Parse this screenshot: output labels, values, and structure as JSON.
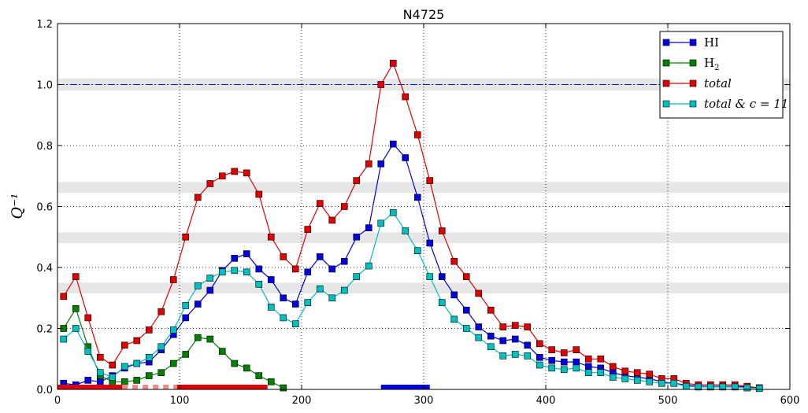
{
  "chart_data": {
    "type": "line",
    "title": "N4725",
    "xlabel": "",
    "ylabel": "Q⁻¹",
    "xlim": [
      0,
      600
    ],
    "ylim": [
      0,
      1.2
    ],
    "x_ticks": [
      "0",
      "100",
      "200",
      "300",
      "400",
      "500",
      "600"
    ],
    "y_ticks": [
      "0.0",
      "0.2",
      "0.4",
      "0.6",
      "0.8",
      "1.0",
      "1.2"
    ],
    "grid": true,
    "legend_position": "top-right",
    "reference_line": {
      "y": 1.0,
      "color": "#0000ff",
      "style": "dash-dot"
    },
    "shaded_bands": [
      [
        0.315,
        0.35
      ],
      [
        0.48,
        0.515
      ],
      [
        0.645,
        0.68
      ],
      [
        0.98,
        1.02
      ]
    ],
    "bottom_bars": [
      {
        "from": 0,
        "to": 53,
        "color": "#e00000",
        "style": "solid"
      },
      {
        "from": 53,
        "to": 98,
        "color": "#f08a8a",
        "style": "dashed"
      },
      {
        "from": 98,
        "to": 172,
        "color": "#e00000",
        "style": "solid"
      },
      {
        "from": 265,
        "to": 305,
        "color": "#0000e0",
        "style": "solid"
      }
    ],
    "series": [
      {
        "name": "HI",
        "label_main": "HI",
        "label_sub": "",
        "color": "#0000e0",
        "points": [
          [
            5,
            0.02
          ],
          [
            15,
            0.015
          ],
          [
            25,
            0.03
          ],
          [
            35,
            0.025
          ],
          [
            45,
            0.045
          ],
          [
            55,
            0.07
          ],
          [
            65,
            0.085
          ],
          [
            75,
            0.09
          ],
          [
            85,
            0.13
          ],
          [
            95,
            0.18
          ],
          [
            105,
            0.235
          ],
          [
            115,
            0.28
          ],
          [
            125,
            0.325
          ],
          [
            135,
            0.39
          ],
          [
            145,
            0.43
          ],
          [
            155,
            0.445
          ],
          [
            165,
            0.395
          ],
          [
            175,
            0.36
          ],
          [
            185,
            0.3
          ],
          [
            195,
            0.28
          ],
          [
            205,
            0.385
          ],
          [
            215,
            0.435
          ],
          [
            225,
            0.395
          ],
          [
            235,
            0.42
          ],
          [
            245,
            0.5
          ],
          [
            255,
            0.53
          ],
          [
            265,
            0.74
          ],
          [
            275,
            0.805
          ],
          [
            285,
            0.76
          ],
          [
            295,
            0.63
          ],
          [
            305,
            0.48
          ],
          [
            315,
            0.37
          ],
          [
            325,
            0.31
          ],
          [
            335,
            0.26
          ],
          [
            345,
            0.205
          ],
          [
            355,
            0.175
          ],
          [
            365,
            0.16
          ],
          [
            375,
            0.165
          ],
          [
            385,
            0.145
          ],
          [
            395,
            0.105
          ],
          [
            405,
            0.095
          ],
          [
            415,
            0.09
          ],
          [
            425,
            0.09
          ],
          [
            435,
            0.075
          ],
          [
            445,
            0.07
          ],
          [
            455,
            0.055
          ],
          [
            465,
            0.045
          ],
          [
            475,
            0.04
          ],
          [
            485,
            0.035
          ],
          [
            495,
            0.025
          ],
          [
            505,
            0.02
          ],
          [
            515,
            0.015
          ],
          [
            525,
            0.01
          ],
          [
            535,
            0.01
          ],
          [
            545,
            0.01
          ],
          [
            555,
            0.01
          ],
          [
            565,
            0.008
          ],
          [
            575,
            0.005
          ]
        ]
      },
      {
        "name": "H2",
        "label_main": "H",
        "label_sub": "2",
        "color": "#007f00",
        "points": [
          [
            5,
            0.2
          ],
          [
            15,
            0.265
          ],
          [
            25,
            0.14
          ],
          [
            35,
            0.045
          ],
          [
            45,
            0.025
          ],
          [
            55,
            0.025
          ],
          [
            65,
            0.03
          ],
          [
            75,
            0.045
          ],
          [
            85,
            0.055
          ],
          [
            95,
            0.085
          ],
          [
            105,
            0.115
          ],
          [
            115,
            0.17
          ],
          [
            125,
            0.165
          ],
          [
            135,
            0.125
          ],
          [
            145,
            0.085
          ],
          [
            155,
            0.07
          ],
          [
            165,
            0.045
          ],
          [
            175,
            0.025
          ],
          [
            185,
            0.005
          ]
        ]
      },
      {
        "name": "total",
        "label_main": "total",
        "label_sub": "",
        "color": "#e00000",
        "points": [
          [
            5,
            0.305
          ],
          [
            15,
            0.37
          ],
          [
            25,
            0.235
          ],
          [
            35,
            0.105
          ],
          [
            45,
            0.08
          ],
          [
            55,
            0.145
          ],
          [
            65,
            0.16
          ],
          [
            75,
            0.195
          ],
          [
            85,
            0.255
          ],
          [
            95,
            0.36
          ],
          [
            105,
            0.5
          ],
          [
            115,
            0.63
          ],
          [
            125,
            0.675
          ],
          [
            135,
            0.7
          ],
          [
            145,
            0.715
          ],
          [
            155,
            0.71
          ],
          [
            165,
            0.64
          ],
          [
            175,
            0.5
          ],
          [
            185,
            0.435
          ],
          [
            195,
            0.395
          ],
          [
            205,
            0.525
          ],
          [
            215,
            0.61
          ],
          [
            225,
            0.555
          ],
          [
            235,
            0.6
          ],
          [
            245,
            0.685
          ],
          [
            255,
            0.74
          ],
          [
            265,
            1.0
          ],
          [
            275,
            1.07
          ],
          [
            285,
            0.96
          ],
          [
            295,
            0.835
          ],
          [
            305,
            0.685
          ],
          [
            315,
            0.52
          ],
          [
            325,
            0.42
          ],
          [
            335,
            0.37
          ],
          [
            345,
            0.315
          ],
          [
            355,
            0.26
          ],
          [
            365,
            0.205
          ],
          [
            375,
            0.21
          ],
          [
            385,
            0.205
          ],
          [
            395,
            0.15
          ],
          [
            405,
            0.13
          ],
          [
            415,
            0.12
          ],
          [
            425,
            0.13
          ],
          [
            435,
            0.1
          ],
          [
            445,
            0.1
          ],
          [
            455,
            0.075
          ],
          [
            465,
            0.06
          ],
          [
            475,
            0.055
          ],
          [
            485,
            0.05
          ],
          [
            495,
            0.035
          ],
          [
            505,
            0.035
          ],
          [
            515,
            0.02
          ],
          [
            525,
            0.015
          ],
          [
            535,
            0.015
          ],
          [
            545,
            0.015
          ],
          [
            555,
            0.015
          ],
          [
            565,
            0.01
          ],
          [
            575,
            0.005
          ]
        ]
      },
      {
        "name": "total & c=11",
        "label_main": "total & c = 11",
        "label_sub": "",
        "color": "#00bfbf",
        "points": [
          [
            5,
            0.165
          ],
          [
            15,
            0.2
          ],
          [
            25,
            0.125
          ],
          [
            35,
            0.055
          ],
          [
            45,
            0.04
          ],
          [
            55,
            0.075
          ],
          [
            65,
            0.085
          ],
          [
            75,
            0.105
          ],
          [
            85,
            0.14
          ],
          [
            95,
            0.195
          ],
          [
            105,
            0.275
          ],
          [
            115,
            0.34
          ],
          [
            125,
            0.365
          ],
          [
            135,
            0.385
          ],
          [
            145,
            0.39
          ],
          [
            155,
            0.385
          ],
          [
            165,
            0.345
          ],
          [
            175,
            0.27
          ],
          [
            185,
            0.235
          ],
          [
            195,
            0.215
          ],
          [
            205,
            0.285
          ],
          [
            215,
            0.33
          ],
          [
            225,
            0.3
          ],
          [
            235,
            0.325
          ],
          [
            245,
            0.37
          ],
          [
            255,
            0.405
          ],
          [
            265,
            0.545
          ],
          [
            275,
            0.58
          ],
          [
            285,
            0.52
          ],
          [
            295,
            0.455
          ],
          [
            305,
            0.37
          ],
          [
            315,
            0.285
          ],
          [
            325,
            0.23
          ],
          [
            335,
            0.2
          ],
          [
            345,
            0.17
          ],
          [
            355,
            0.14
          ],
          [
            365,
            0.11
          ],
          [
            375,
            0.115
          ],
          [
            385,
            0.11
          ],
          [
            395,
            0.08
          ],
          [
            405,
            0.07
          ],
          [
            415,
            0.065
          ],
          [
            425,
            0.07
          ],
          [
            435,
            0.055
          ],
          [
            445,
            0.055
          ],
          [
            455,
            0.04
          ],
          [
            465,
            0.035
          ],
          [
            475,
            0.03
          ],
          [
            485,
            0.025
          ],
          [
            495,
            0.02
          ],
          [
            505,
            0.02
          ],
          [
            515,
            0.01
          ],
          [
            525,
            0.008
          ],
          [
            535,
            0.008
          ],
          [
            545,
            0.008
          ],
          [
            555,
            0.008
          ],
          [
            565,
            0.005
          ],
          [
            575,
            0.003
          ]
        ]
      }
    ]
  }
}
